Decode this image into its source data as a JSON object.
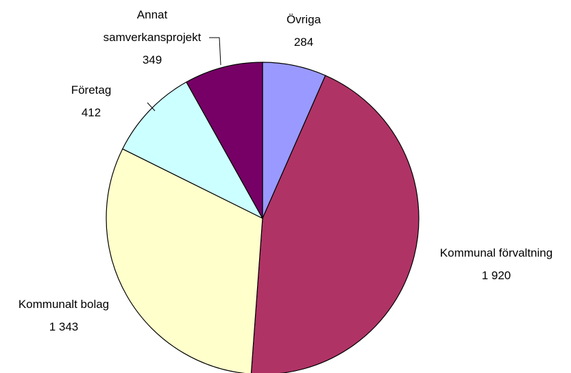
{
  "chart_data": {
    "type": "pie",
    "categories": [
      "Övriga",
      "Kommunal förvaltning",
      "Kommunalt bolag",
      "Företag",
      "Annat samverkansprojekt"
    ],
    "values": [
      284,
      1920,
      1343,
      412,
      349
    ],
    "value_labels": [
      "284",
      "1 920",
      "1 343",
      "412",
      "349"
    ],
    "colors": [
      "#9999FF",
      "#B03366",
      "#FFFFCC",
      "#CCFFFF",
      "#770066"
    ]
  }
}
